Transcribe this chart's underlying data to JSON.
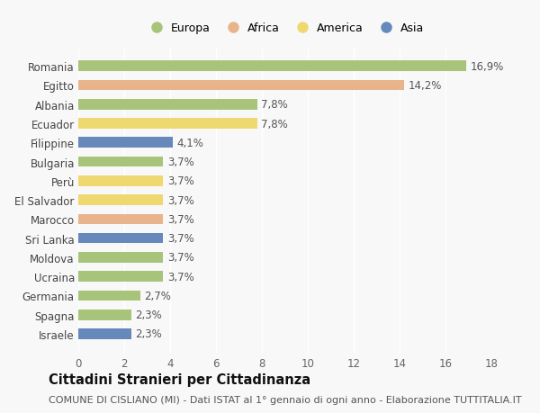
{
  "countries": [
    "Romania",
    "Egitto",
    "Albania",
    "Ecuador",
    "Filippine",
    "Bulgaria",
    "Perù",
    "El Salvador",
    "Marocco",
    "Sri Lanka",
    "Moldova",
    "Ucraina",
    "Germania",
    "Spagna",
    "Israele"
  ],
  "values": [
    16.9,
    14.2,
    7.8,
    7.8,
    4.1,
    3.7,
    3.7,
    3.7,
    3.7,
    3.7,
    3.7,
    3.7,
    2.7,
    2.3,
    2.3
  ],
  "continents": [
    "Europa",
    "Africa",
    "Europa",
    "America",
    "Asia",
    "Europa",
    "America",
    "America",
    "Africa",
    "Asia",
    "Europa",
    "Europa",
    "Europa",
    "Europa",
    "Asia"
  ],
  "continent_colors": {
    "Europa": "#a8c47a",
    "Africa": "#e8b48c",
    "America": "#f0d870",
    "Asia": "#6688bb"
  },
  "legend_order": [
    "Europa",
    "Africa",
    "America",
    "Asia"
  ],
  "xlim": [
    0,
    18
  ],
  "xticks": [
    0,
    2,
    4,
    6,
    8,
    10,
    12,
    14,
    16,
    18
  ],
  "title": "Cittadini Stranieri per Cittadinanza",
  "subtitle": "COMUNE DI CISLIANO (MI) - Dati ISTAT al 1° gennaio di ogni anno - Elaborazione TUTTITALIA.IT",
  "background_color": "#f8f8f8",
  "bar_height": 0.55,
  "label_fontsize": 8.5,
  "tick_fontsize": 8.5,
  "title_fontsize": 10.5,
  "subtitle_fontsize": 8
}
